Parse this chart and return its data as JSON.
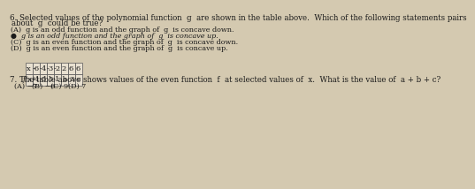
{
  "bg_color": "#d4c9b0",
  "q6_text_line1": "6. Selected values of the polynomial function  g  are shown in the table above.  Which of the following statements pairs",
  "q6_text_line2": "about  g  could be true?",
  "choices": [
    "(A)  g is an odd function and the graph of  g  is concave down.",
    "●  g is an odd function and the graph of  g  is concave up.",
    "(C)  g is an even function and the graph of  g  is concave down.",
    "(D)  g is an even function and the graph of  g  is concave up."
  ],
  "table_header": [
    "x",
    "-6",
    "-4",
    "-3",
    "-2",
    "2",
    "6",
    "6"
  ],
  "table_row2_label": "f(x)",
  "table_row2": [
    "-4",
    "-5",
    "5",
    "1",
    "a",
    "3",
    "c"
  ],
  "q7_text": "7. The table above shows values of the even function  f  at selected values of  x.  What is the value of  a + b + c?",
  "q7_choices": [
    "(A) −7",
    "(B) −6",
    "(C) 9",
    "(D) 7"
  ],
  "text_color": "#1a1a1a",
  "table_border_color": "#555555",
  "font_size_main": 6.2,
  "font_size_table": 6.0,
  "font_size_choices": 5.8
}
